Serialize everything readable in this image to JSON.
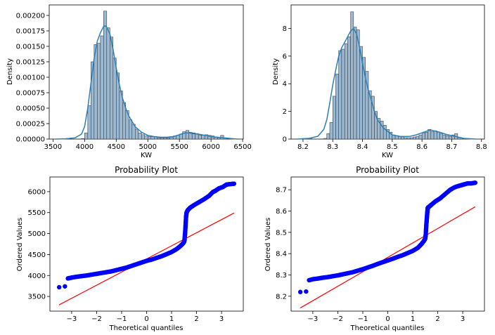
{
  "chart_data": [
    {
      "type": "bar",
      "overlay": "kde line",
      "title": "",
      "xlabel": "KW",
      "ylabel": "Density",
      "xlim": [
        3440,
        6510
      ],
      "ylim": [
        0,
        0.00217
      ],
      "x_ticks": [
        3500,
        4000,
        4500,
        5000,
        5500,
        6000,
        6500
      ],
      "y_ticks": [
        0,
        0.00025,
        0.0005,
        0.00075,
        0.001,
        0.00125,
        0.0015,
        0.00175,
        0.002
      ],
      "x_tick_labels": [
        "3500",
        "4000",
        "4500",
        "5000",
        "5500",
        "6000",
        "6500"
      ],
      "y_tick_labels": [
        "0.00000",
        "0.00025",
        "0.00050",
        "0.00075",
        "0.00100",
        "0.00125",
        "0.00150",
        "0.00175",
        "0.00200"
      ],
      "bin_edges": [
        3700,
        3750,
        3800,
        3850,
        3900,
        3950,
        4000,
        4050,
        4100,
        4150,
        4200,
        4250,
        4300,
        4350,
        4400,
        4450,
        4500,
        4550,
        4600,
        4650,
        4700,
        4750,
        4800,
        4850,
        4900,
        4950,
        5000,
        5050,
        5100,
        5150,
        5200,
        5250,
        5300,
        5350,
        5400,
        5450,
        5500,
        5550,
        5600,
        5650,
        5700,
        5750,
        5800,
        5850,
        5900,
        5950,
        6000,
        6050,
        6100,
        6150,
        6200
      ],
      "bins": [
        1e-05,
        0,
        0,
        0,
        0,
        1e-05,
        0.0001,
        0.00054,
        0.00125,
        0.00153,
        0.00155,
        0.00167,
        0.00207,
        0.0018,
        0.00165,
        0.00131,
        0.00107,
        0.00078,
        0.00059,
        0.00046,
        0.00031,
        0.00024,
        0.00016,
        0.0001,
        7e-05,
        5e-05,
        4e-05,
        4e-05,
        4e-05,
        2e-05,
        2e-05,
        2e-05,
        2e-05,
        3e-05,
        5e-05,
        6e-05,
        8e-05,
        0.00012,
        0.00014,
        0.00011,
        0.0001,
        9e-05,
        6e-05,
        6e-05,
        7e-05,
        6e-05,
        5e-05,
        3e-05,
        2e-05,
        6e-05
      ],
      "kde_x": [
        3540,
        3700,
        3850,
        3950,
        4000,
        4050,
        4100,
        4150,
        4200,
        4250,
        4300,
        4330,
        4350,
        4400,
        4450,
        4500,
        4550,
        4600,
        4650,
        4700,
        4800,
        4900,
        5000,
        5100,
        5200,
        5300,
        5400,
        5500,
        5550,
        5600,
        5650,
        5700,
        5800,
        5900,
        6000,
        6100,
        6200,
        6300,
        6420
      ],
      "kde_y": [
        0,
        5e-06,
        2e-05,
        8e-05,
        0.0002,
        0.0005,
        0.0009,
        0.0013,
        0.00158,
        0.00172,
        0.00182,
        0.00183,
        0.00181,
        0.0017,
        0.00145,
        0.00115,
        0.00088,
        0.00066,
        0.0005,
        0.00037,
        0.0002,
        0.00011,
        6e-05,
        4e-05,
        3e-05,
        3e-05,
        4e-05,
        7e-05,
        9e-05,
        0.0001,
        0.0001,
        9e-05,
        8e-05,
        6e-05,
        4e-05,
        3e-05,
        2e-05,
        1e-05,
        0
      ],
      "bar_color": "#9bb8d2",
      "line_color": "#2c7fb8"
    },
    {
      "type": "bar",
      "overlay": "kde line",
      "title": "",
      "xlabel": "KW",
      "ylabel": "Density",
      "xlim": [
        8.16,
        8.81
      ],
      "ylim": [
        0,
        9.7
      ],
      "x_ticks": [
        8.2,
        8.3,
        8.4,
        8.5,
        8.6,
        8.7,
        8.8
      ],
      "y_ticks": [
        0,
        2,
        4,
        6,
        8
      ],
      "x_tick_labels": [
        "8.2",
        "8.3",
        "8.4",
        "8.5",
        "8.6",
        "8.7",
        "8.8"
      ],
      "y_tick_labels": [
        "0",
        "2",
        "4",
        "6",
        "8"
      ],
      "bin_edges": [
        8.22,
        8.23,
        8.24,
        8.25,
        8.26,
        8.27,
        8.28,
        8.29,
        8.3,
        8.31,
        8.32,
        8.33,
        8.34,
        8.35,
        8.36,
        8.37,
        8.38,
        8.39,
        8.4,
        8.41,
        8.42,
        8.43,
        8.44,
        8.45,
        8.46,
        8.47,
        8.48,
        8.49,
        8.5,
        8.51,
        8.52,
        8.53,
        8.54,
        8.55,
        8.56,
        8.57,
        8.58,
        8.59,
        8.6,
        8.61,
        8.62,
        8.63,
        8.64,
        8.65,
        8.66,
        8.67,
        8.68,
        8.69,
        8.7,
        8.71,
        8.72,
        8.73
      ],
      "bins": [
        0.05,
        0,
        0,
        0,
        0,
        0.05,
        0.4,
        1.2,
        3.1,
        4.7,
        6.4,
        6.5,
        6.9,
        7.4,
        9.2,
        8.1,
        7.9,
        6.7,
        5.9,
        4.9,
        3.5,
        3.1,
        2.0,
        1.5,
        1.3,
        1.0,
        0.7,
        0.5,
        0.3,
        0.25,
        0.2,
        0.2,
        0.1,
        0.1,
        0.1,
        0.15,
        0.2,
        0.3,
        0.45,
        0.5,
        0.7,
        0.55,
        0.6,
        0.5,
        0.4,
        0.3,
        0.25,
        0.2,
        0.3,
        0.4,
        0.1
      ],
      "kde_x": [
        8.18,
        8.22,
        8.25,
        8.27,
        8.28,
        8.29,
        8.3,
        8.31,
        8.32,
        8.33,
        8.34,
        8.35,
        8.36,
        8.37,
        8.38,
        8.39,
        8.4,
        8.41,
        8.42,
        8.43,
        8.44,
        8.45,
        8.47,
        8.5,
        8.53,
        8.56,
        8.58,
        8.6,
        8.62,
        8.63,
        8.64,
        8.66,
        8.68,
        8.7,
        8.72,
        8.74,
        8.78
      ],
      "kde_y": [
        0,
        0.05,
        0.2,
        0.7,
        1.4,
        2.6,
        3.9,
        5.0,
        6.0,
        6.6,
        7.0,
        7.4,
        7.8,
        8.0,
        7.6,
        6.7,
        5.5,
        4.4,
        3.5,
        2.8,
        2.0,
        1.4,
        0.8,
        0.3,
        0.18,
        0.2,
        0.3,
        0.45,
        0.6,
        0.65,
        0.6,
        0.5,
        0.35,
        0.25,
        0.15,
        0.05,
        0
      ],
      "bar_color": "#9bb8d2",
      "line_color": "#2c7fb8"
    },
    {
      "type": "scatter",
      "title": "Probability Plot",
      "xlabel": "Theoretical quantiles",
      "ylabel": "Ordered Values",
      "xlim": [
        -3.87,
        3.87
      ],
      "ylim": [
        3150,
        6350
      ],
      "x_ticks": [
        -3,
        -2,
        -1,
        0,
        1,
        2,
        3
      ],
      "y_ticks": [
        3500,
        4000,
        4500,
        5000,
        5500,
        6000
      ],
      "x_tick_labels": [
        "−3",
        "−2",
        "−1",
        "0",
        "1",
        "2",
        "3"
      ],
      "y_tick_labels": [
        "3500",
        "4000",
        "4500",
        "5000",
        "5500",
        "6000"
      ],
      "points_x": [
        -3.5,
        -3.27,
        -3.15,
        -3.0,
        -2.8,
        -2.6,
        -2.4,
        -2.2,
        -2.0,
        -1.8,
        -1.6,
        -1.4,
        -1.2,
        -1.0,
        -0.8,
        -0.6,
        -0.4,
        -0.2,
        0.0,
        0.2,
        0.4,
        0.6,
        0.8,
        1.0,
        1.2,
        1.35,
        1.45,
        1.5,
        1.52,
        1.54,
        1.56,
        1.58,
        1.6,
        1.65,
        1.75,
        1.9,
        2.1,
        2.3,
        2.5,
        2.65,
        2.75,
        2.9,
        3.05,
        3.2,
        3.35,
        3.5
      ],
      "points_y": [
        3720,
        3740,
        3930,
        3950,
        3970,
        3985,
        4000,
        4020,
        4040,
        4060,
        4080,
        4100,
        4130,
        4160,
        4190,
        4230,
        4270,
        4310,
        4350,
        4380,
        4420,
        4460,
        4510,
        4560,
        4630,
        4700,
        4760,
        4800,
        4850,
        5000,
        5200,
        5400,
        5500,
        5560,
        5620,
        5680,
        5750,
        5820,
        5900,
        5990,
        6020,
        6080,
        6110,
        6170,
        6180,
        6190
      ],
      "line_x": [
        -3.5,
        3.5
      ],
      "line_y": [
        3300,
        5490
      ],
      "point_color": "#0000ff",
      "line_color": "#ff0000"
    },
    {
      "type": "scatter",
      "title": "Probability Plot",
      "xlabel": "Theoretical quantiles",
      "ylabel": "Ordered Values",
      "xlim": [
        -3.87,
        3.87
      ],
      "ylim": [
        8.13,
        8.76
      ],
      "x_ticks": [
        -3,
        -2,
        -1,
        0,
        1,
        2,
        3
      ],
      "y_ticks": [
        8.2,
        8.3,
        8.4,
        8.5,
        8.6,
        8.7
      ],
      "x_tick_labels": [
        "−3",
        "−2",
        "−1",
        "0",
        "1",
        "2",
        "3"
      ],
      "y_tick_labels": [
        "8.2",
        "8.3",
        "8.4",
        "8.5",
        "8.6",
        "8.7"
      ],
      "points_x": [
        -3.5,
        -3.27,
        -3.15,
        -3.0,
        -2.8,
        -2.6,
        -2.4,
        -2.2,
        -2.0,
        -1.8,
        -1.6,
        -1.4,
        -1.2,
        -1.0,
        -0.8,
        -0.6,
        -0.4,
        -0.2,
        0.0,
        0.2,
        0.4,
        0.6,
        0.8,
        1.0,
        1.2,
        1.35,
        1.45,
        1.5,
        1.52,
        1.54,
        1.56,
        1.58,
        1.6,
        1.65,
        1.75,
        1.9,
        2.1,
        2.3,
        2.5,
        2.65,
        2.75,
        2.9,
        3.05,
        3.2,
        3.35,
        3.5
      ],
      "points_y": [
        8.22,
        8.222,
        8.275,
        8.28,
        8.283,
        8.287,
        8.29,
        8.294,
        8.298,
        8.303,
        8.308,
        8.313,
        8.32,
        8.327,
        8.335,
        8.343,
        8.352,
        8.36,
        8.368,
        8.376,
        8.385,
        8.393,
        8.403,
        8.413,
        8.427,
        8.445,
        8.46,
        8.47,
        8.49,
        8.53,
        8.56,
        8.59,
        8.615,
        8.62,
        8.63,
        8.645,
        8.66,
        8.68,
        8.7,
        8.71,
        8.715,
        8.72,
        8.725,
        8.73,
        8.73,
        8.733
      ],
      "line_x": [
        -3.5,
        3.5
      ],
      "line_y": [
        8.145,
        8.62
      ],
      "point_color": "#0000ff",
      "line_color": "#ff0000"
    }
  ]
}
